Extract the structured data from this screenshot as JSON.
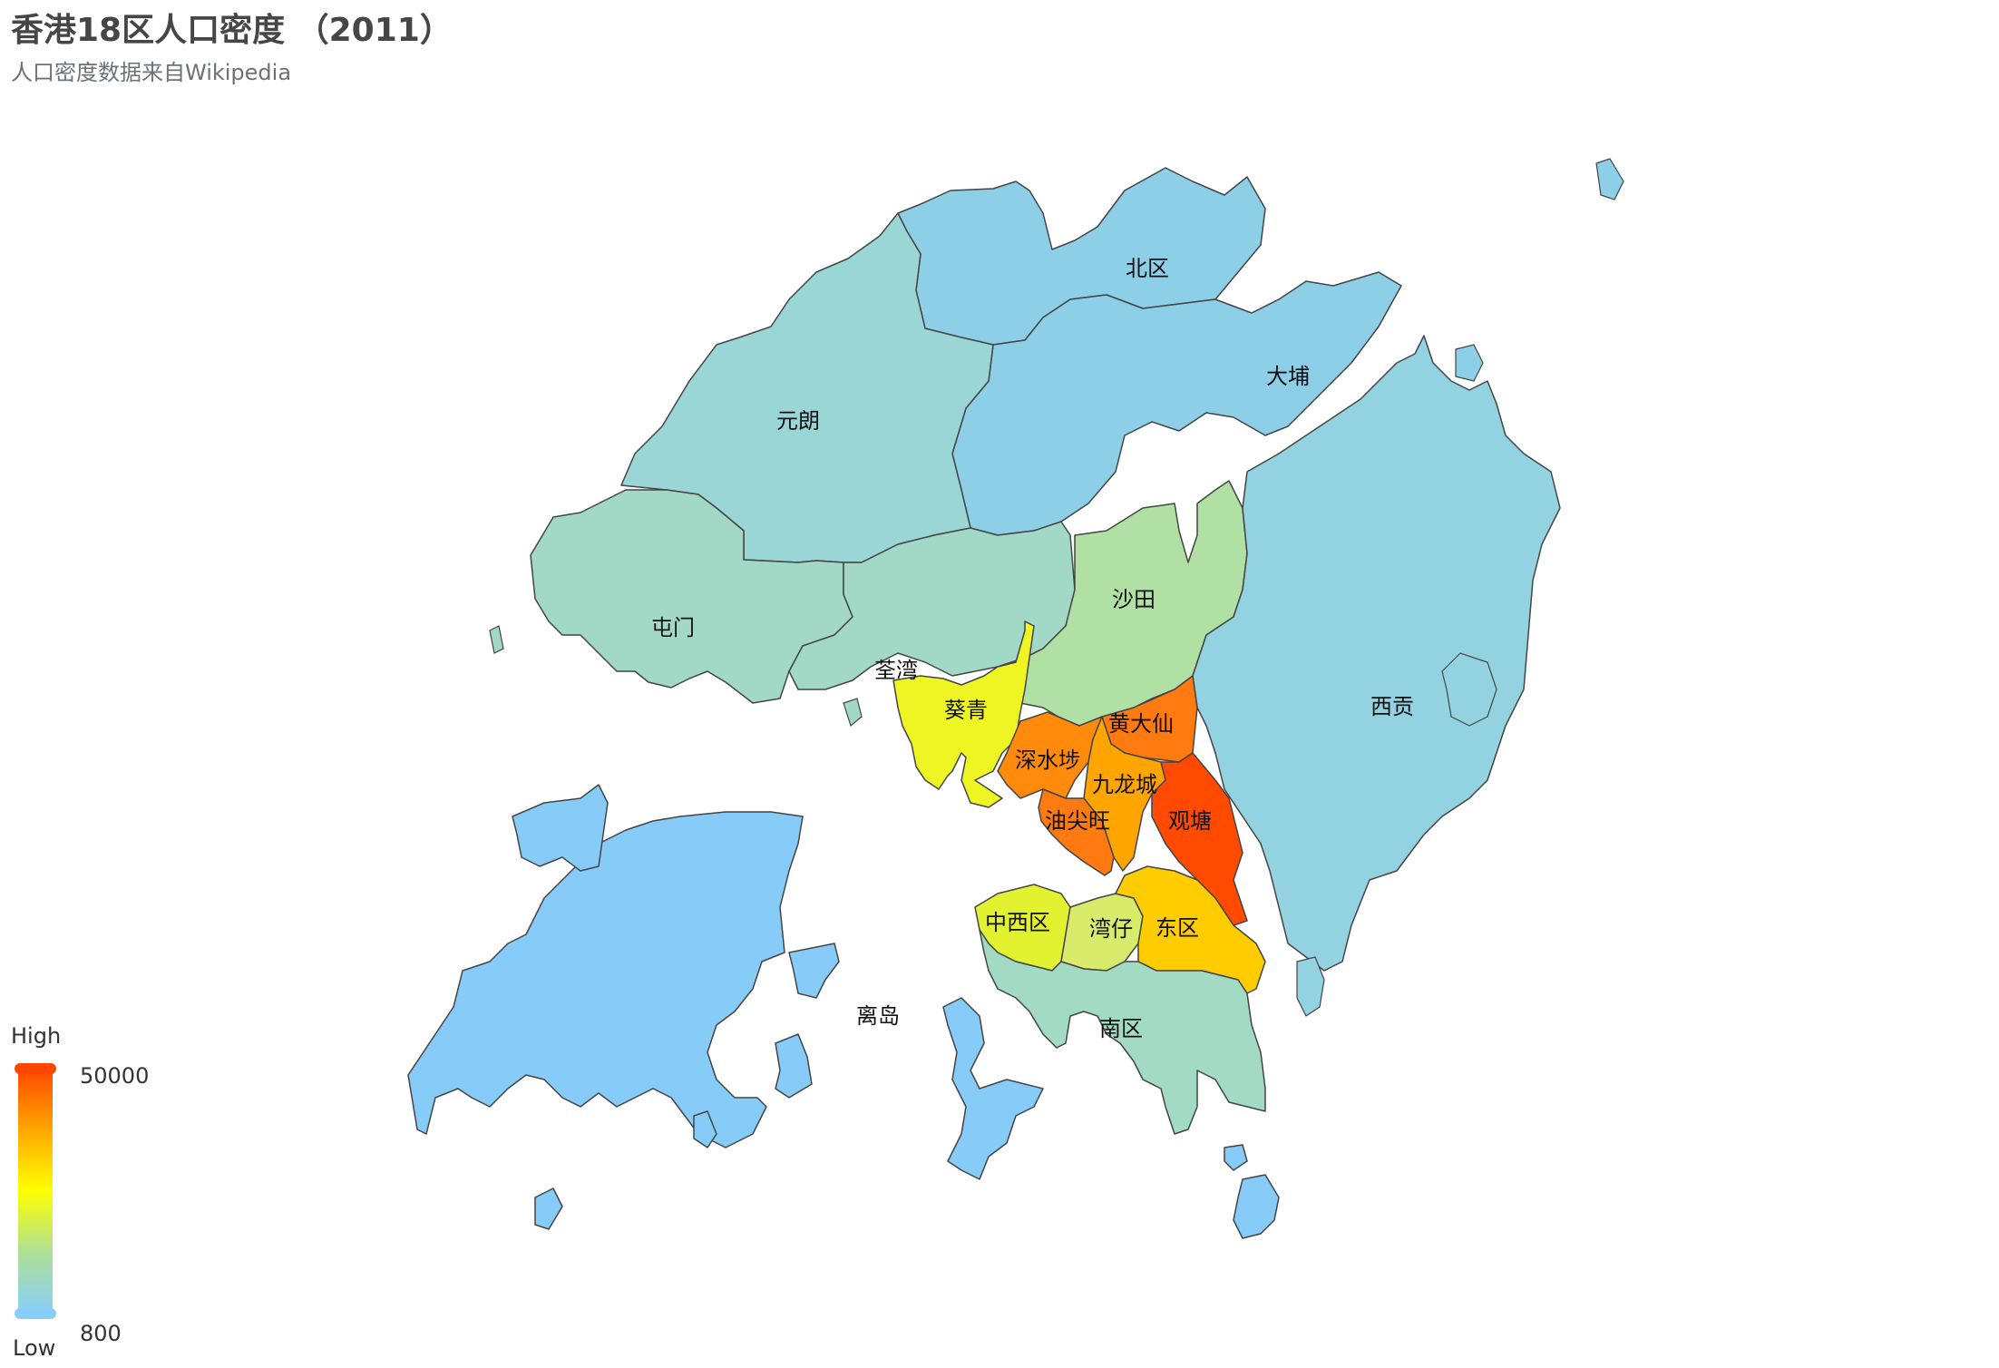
{
  "title": "香港18区人口密度 （2011）",
  "subtitle": "人口密度数据来自Wikipedia",
  "visual_map": {
    "high_label": "High",
    "low_label": "Low",
    "max_value": "50000",
    "min_value": "800",
    "colors": [
      "#87cefa",
      "#afe094",
      "#ffff00",
      "#ffa500",
      "#ff4500"
    ]
  },
  "chart_data": {
    "type": "map",
    "region": "香港",
    "districts": [
      {
        "name": "北区",
        "color": "#8ecfe8"
      },
      {
        "name": "大埔",
        "color": "#8ecfe8"
      },
      {
        "name": "元朗",
        "color": "#9bd6d6"
      },
      {
        "name": "屯门",
        "color": "#a1d9c6"
      },
      {
        "name": "荃湾",
        "color": "#a1d9c6"
      },
      {
        "name": "沙田",
        "color": "#b1e0a5"
      },
      {
        "name": "葵青",
        "color": "#eef522"
      },
      {
        "name": "西贡",
        "color": "#93d2e0"
      },
      {
        "name": "黄大仙",
        "color": "#ff7a10"
      },
      {
        "name": "深水埗",
        "color": "#ff8a0c"
      },
      {
        "name": "九龙城",
        "color": "#ffa500"
      },
      {
        "name": "油尖旺",
        "color": "#ff7a10"
      },
      {
        "name": "观塘",
        "color": "#ff4a00"
      },
      {
        "name": "中西区",
        "color": "#e3f230"
      },
      {
        "name": "湾仔",
        "color": "#d8eb6a"
      },
      {
        "name": "东区",
        "color": "#ffcc00"
      },
      {
        "name": "南区",
        "color": "#a3dac4"
      },
      {
        "name": "离岛",
        "color": "#87cbf8"
      }
    ]
  }
}
